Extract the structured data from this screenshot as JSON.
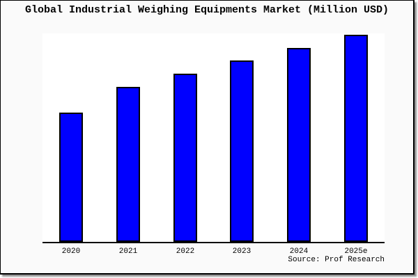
{
  "frame": {
    "background_color": "#fafafa",
    "plot_background_color": "#ffffff",
    "border_color": "#000000"
  },
  "title": "Global Industrial Weighing Equipments Market (Million USD)",
  "source_note": "Source: Prof Research",
  "chart_data": {
    "type": "bar",
    "title": "Global Industrial Weighing Equipments Market (Million USD)",
    "categories": [
      "2020",
      "2021",
      "2022",
      "2023",
      "2024",
      "2025e"
    ],
    "values": [
      186,
      223,
      242,
      261,
      279,
      298
    ],
    "ylim": [
      0,
      300
    ],
    "xlabel": "",
    "ylabel": "",
    "y_axis_ticks_visible": false,
    "grid": false,
    "legend": false,
    "bar_color": "#0000ff",
    "bar_border_color": "#000000",
    "annotation": "Source: Prof Research"
  }
}
